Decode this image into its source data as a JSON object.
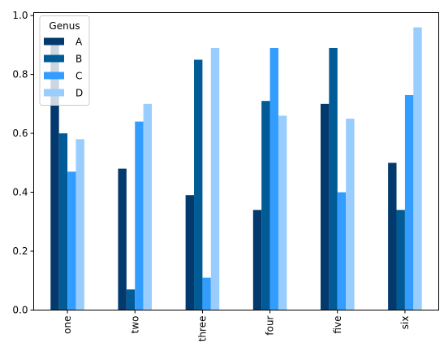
{
  "chart_data": {
    "type": "bar",
    "title": "",
    "xlabel": "",
    "ylabel": "",
    "categories": [
      "one",
      "two",
      "three",
      "four",
      "five",
      "six"
    ],
    "series": [
      {
        "name": "A",
        "color": "#03396c",
        "values": [
          0.92,
          0.48,
          0.39,
          0.34,
          0.7,
          0.5
        ]
      },
      {
        "name": "B",
        "color": "#005b96",
        "values": [
          0.6,
          0.07,
          0.85,
          0.71,
          0.89,
          0.34
        ]
      },
      {
        "name": "C",
        "color": "#339dff",
        "values": [
          0.47,
          0.64,
          0.11,
          0.89,
          0.4,
          0.73
        ]
      },
      {
        "name": "D",
        "color": "#99cdfd",
        "values": [
          0.58,
          0.7,
          0.89,
          0.66,
          0.65,
          0.96
        ]
      }
    ],
    "ylim": [
      0,
      1.01
    ],
    "yticks": [
      "0.0",
      "0.2",
      "0.4",
      "0.6",
      "0.8",
      "1.0"
    ],
    "grid": false,
    "x_tick_rotation": "vertical",
    "legend": {
      "title": "Genus",
      "placement": "top-left"
    }
  }
}
